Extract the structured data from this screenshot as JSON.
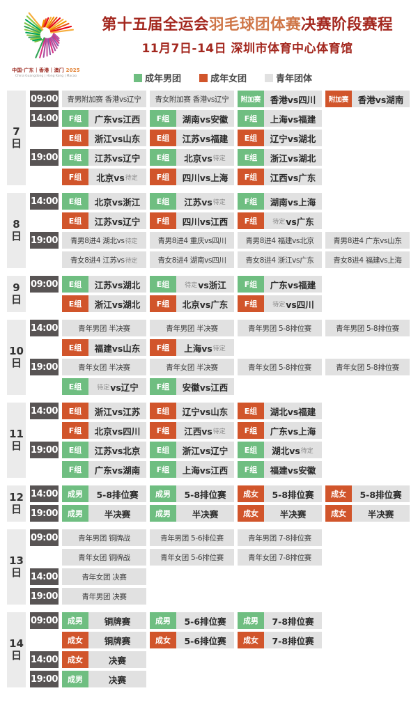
{
  "header": {
    "title_part1": "第十五届全运会",
    "title_highlight": "羽毛球团体赛",
    "title_part2": "决赛阶段赛程",
    "subtitle": "11月7日-14日 深圳市体育中心体育馆",
    "logo": {
      "line_cn": "中国·广东｜香港｜澳门",
      "year": "2025",
      "line_en": "China Guangdong | Hong Kong | Macao"
    }
  },
  "legend": {
    "items": [
      {
        "label": "成年男团",
        "color": "#6fbe81"
      },
      {
        "label": "成年女团",
        "color": "#d1552b"
      },
      {
        "label": "青年团体",
        "color": "#e1e1e1"
      }
    ]
  },
  "colors": {
    "green": "#6fbe81",
    "orange": "#d1552b",
    "time_bg": "#585454",
    "cell_bg": "#e1e1e1",
    "title_red": "#a3271e",
    "title_highlight": "#cf7647",
    "pending_gray": "#8a8a8a"
  },
  "pending_keyword": "待定",
  "day_suffix": "日",
  "schedule": {
    "days": [
      {
        "day": "7",
        "slots": [
          {
            "time": "09:00",
            "rows": [
              [
                {
                  "text": "青男附加赛 香港vs辽宁"
                },
                {
                  "text": "青女附加赛 香港vs辽宁"
                },
                {
                  "tag": "附加赛",
                  "color": "green",
                  "text": "香港vs四川"
                },
                {
                  "tag": "附加赛",
                  "color": "orange",
                  "text": "香港vs湖南"
                }
              ]
            ]
          },
          {
            "time": "14:00",
            "rows": [
              [
                {
                  "tag": "F组",
                  "color": "green",
                  "text": "广东vs江西"
                },
                {
                  "tag": "F组",
                  "color": "green",
                  "text": "湖南vs安徽"
                },
                {
                  "tag": "F组",
                  "color": "green",
                  "text": "上海vs福建"
                }
              ],
              [
                {
                  "tag": "E组",
                  "color": "orange",
                  "text": "浙江vs山东"
                },
                {
                  "tag": "E组",
                  "color": "orange",
                  "text": "江苏vs福建"
                },
                {
                  "tag": "E组",
                  "color": "orange",
                  "text": "辽宁vs湖北"
                }
              ]
            ]
          },
          {
            "time": "19:00",
            "rows": [
              [
                {
                  "tag": "E组",
                  "color": "green",
                  "text": "江苏vs辽宁"
                },
                {
                  "tag": "E组",
                  "color": "green",
                  "text": "北京vs 待定"
                },
                {
                  "tag": "E组",
                  "color": "green",
                  "text": "浙江vs湖北"
                }
              ],
              [
                {
                  "tag": "F组",
                  "color": "orange",
                  "text": "北京vs 待定"
                },
                {
                  "tag": "F组",
                  "color": "orange",
                  "text": "四川vs上海"
                },
                {
                  "tag": "F组",
                  "color": "orange",
                  "text": "江西vs广东"
                }
              ]
            ]
          }
        ]
      },
      {
        "day": "8",
        "slots": [
          {
            "time": "14:00",
            "rows": [
              [
                {
                  "tag": "E组",
                  "color": "green",
                  "text": "北京vs浙江"
                },
                {
                  "tag": "E组",
                  "color": "green",
                  "text": "江苏vs 待定"
                },
                {
                  "tag": "F组",
                  "color": "green",
                  "text": "湖南vs上海"
                }
              ],
              [
                {
                  "tag": "E组",
                  "color": "orange",
                  "text": "江苏vs辽宁"
                },
                {
                  "tag": "F组",
                  "color": "orange",
                  "text": "四川vs江西"
                },
                {
                  "tag": "F组",
                  "color": "orange",
                  "text": "待定 vs广东"
                }
              ]
            ]
          },
          {
            "time": "19:00",
            "rows": [
              [
                {
                  "text": "青男8进4 湖北vs 待定"
                },
                {
                  "text": "青男8进4 重庆vs四川"
                },
                {
                  "text": "青男8进4 福建vs北京"
                },
                {
                  "text": "青男8进4 广东vs山东"
                }
              ],
              [
                {
                  "text": "青女8进4 江苏vs 待定"
                },
                {
                  "text": "青女8进4 湖南vs四川"
                },
                {
                  "text": "青女8进4 浙江vs广东"
                },
                {
                  "text": "青女8进4 福建vs上海"
                }
              ]
            ]
          }
        ]
      },
      {
        "day": "9",
        "slots": [
          {
            "time": "09:00",
            "rows": [
              [
                {
                  "tag": "E组",
                  "color": "green",
                  "text": "江苏vs湖北"
                },
                {
                  "tag": "E组",
                  "color": "green",
                  "text": "待定 vs浙江"
                },
                {
                  "tag": "F组",
                  "color": "green",
                  "text": "广东vs福建"
                }
              ],
              [
                {
                  "tag": "E组",
                  "color": "orange",
                  "text": "浙江vs湖北"
                },
                {
                  "tag": "F组",
                  "color": "orange",
                  "text": "北京vs广东"
                },
                {
                  "tag": "F组",
                  "color": "orange",
                  "text": "待定 vs四川"
                }
              ]
            ]
          }
        ]
      },
      {
        "day": "10",
        "slots": [
          {
            "time": "14:00",
            "rows": [
              [
                {
                  "text": "青年男团 半决赛"
                },
                {
                  "text": "青年男团 半决赛"
                },
                {
                  "text": "青年男团 5-8排位赛"
                },
                {
                  "text": "青年男团 5-8排位赛"
                }
              ],
              [
                {
                  "tag": "E组",
                  "color": "orange",
                  "text": "福建vs山东"
                },
                {
                  "tag": "F组",
                  "color": "orange",
                  "text": "上海vs 待定"
                }
              ]
            ]
          },
          {
            "time": "19:00",
            "rows": [
              [
                {
                  "text": "青年女团 半决赛"
                },
                {
                  "text": "青年女团 半决赛"
                },
                {
                  "text": "青年女团 5-8排位赛"
                },
                {
                  "text": "青年女团 5-8排位赛"
                }
              ],
              [
                {
                  "tag": "E组",
                  "color": "green",
                  "text": "待定 vs辽宁"
                },
                {
                  "tag": "F组",
                  "color": "green",
                  "text": "安徽vs江西"
                }
              ]
            ]
          }
        ]
      },
      {
        "day": "11",
        "slots": [
          {
            "time": "14:00",
            "rows": [
              [
                {
                  "tag": "E组",
                  "color": "orange",
                  "text": "浙江vs江苏"
                },
                {
                  "tag": "E组",
                  "color": "orange",
                  "text": "辽宁vs山东"
                },
                {
                  "tag": "E组",
                  "color": "orange",
                  "text": "湖北vs福建"
                }
              ],
              [
                {
                  "tag": "F组",
                  "color": "orange",
                  "text": "北京vs四川"
                },
                {
                  "tag": "F组",
                  "color": "orange",
                  "text": "江西vs 待定"
                },
                {
                  "tag": "F组",
                  "color": "orange",
                  "text": "广东vs上海"
                }
              ]
            ]
          },
          {
            "time": "19:00",
            "rows": [
              [
                {
                  "tag": "E组",
                  "color": "green",
                  "text": "江苏vs北京"
                },
                {
                  "tag": "E组",
                  "color": "green",
                  "text": "浙江vs辽宁"
                },
                {
                  "tag": "E组",
                  "color": "green",
                  "text": "湖北vs 待定"
                }
              ],
              [
                {
                  "tag": "F组",
                  "color": "green",
                  "text": "广东vs湖南"
                },
                {
                  "tag": "F组",
                  "color": "green",
                  "text": "上海vs江西"
                },
                {
                  "tag": "F组",
                  "color": "green",
                  "text": "福建vs安徽"
                }
              ]
            ]
          }
        ]
      },
      {
        "day": "12",
        "slots": [
          {
            "time": "14:00",
            "rows": [
              [
                {
                  "tag": "成男",
                  "color": "green",
                  "text": "5-8排位赛"
                },
                {
                  "tag": "成男",
                  "color": "green",
                  "text": "5-8排位赛"
                },
                {
                  "tag": "成女",
                  "color": "orange",
                  "text": "5-8排位赛"
                },
                {
                  "tag": "成女",
                  "color": "orange",
                  "text": "5-8排位赛"
                }
              ]
            ]
          },
          {
            "time": "19:00",
            "rows": [
              [
                {
                  "tag": "成男",
                  "color": "green",
                  "text": "半决赛"
                },
                {
                  "tag": "成男",
                  "color": "green",
                  "text": "半决赛"
                },
                {
                  "tag": "成女",
                  "color": "orange",
                  "text": "半决赛"
                },
                {
                  "tag": "成女",
                  "color": "orange",
                  "text": "半决赛"
                }
              ]
            ]
          }
        ]
      },
      {
        "day": "13",
        "slots": [
          {
            "time": "09:00",
            "rows": [
              [
                {
                  "text": "青年男团 铜牌战"
                },
                {
                  "text": "青年男团 5-6排位赛"
                },
                {
                  "text": "青年男团 7-8排位赛"
                }
              ],
              [
                {
                  "text": "青年女团 铜牌战"
                },
                {
                  "text": "青年女团 5-6排位赛"
                },
                {
                  "text": "青年女团 7-8排位赛"
                }
              ]
            ]
          },
          {
            "time": "14:00",
            "rows": [
              [
                {
                  "text": "青年女团 决赛"
                }
              ]
            ]
          },
          {
            "time": "19:00",
            "rows": [
              [
                {
                  "text": "青年男团 决赛"
                }
              ]
            ]
          }
        ]
      },
      {
        "day": "14",
        "slots": [
          {
            "time": "09:00",
            "rows": [
              [
                {
                  "tag": "成男",
                  "color": "green",
                  "text": "铜牌赛"
                },
                {
                  "tag": "成男",
                  "color": "green",
                  "text": "5-6排位赛"
                },
                {
                  "tag": "成男",
                  "color": "green",
                  "text": "7-8排位赛"
                }
              ],
              [
                {
                  "tag": "成女",
                  "color": "orange",
                  "text": "铜牌赛"
                },
                {
                  "tag": "成女",
                  "color": "orange",
                  "text": "5-6排位赛"
                },
                {
                  "tag": "成女",
                  "color": "orange",
                  "text": "7-8排位赛"
                }
              ]
            ]
          },
          {
            "time": "14:00",
            "rows": [
              [
                {
                  "tag": "成女",
                  "color": "orange",
                  "text": "决赛"
                }
              ]
            ]
          },
          {
            "time": "19:00",
            "rows": [
              [
                {
                  "tag": "成男",
                  "color": "green",
                  "text": "决赛"
                }
              ]
            ]
          }
        ]
      }
    ]
  }
}
